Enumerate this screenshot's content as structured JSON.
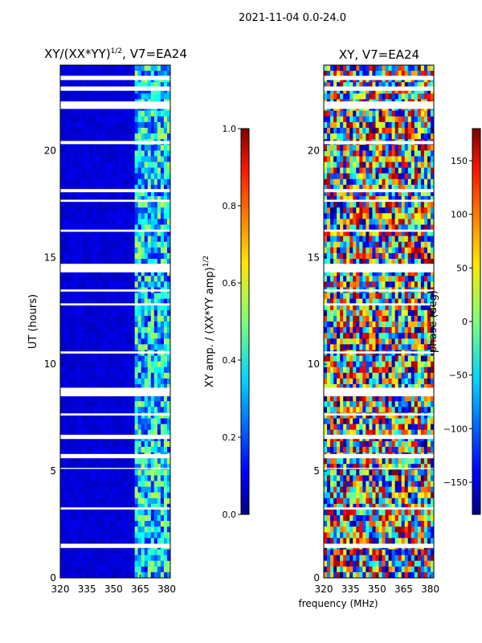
{
  "suptitle": "2021-11-04 0.0-24.0",
  "chart_data": [
    {
      "type": "heatmap",
      "title_prefix": "XY/(XX*YY)",
      "title_exp": "1/2",
      "title_suffix": ", V7=EA24",
      "xlabel": "",
      "ylabel": "UT (hours)",
      "xlim": [
        320,
        382
      ],
      "ylim": [
        0,
        24
      ],
      "xticks": [
        320,
        335,
        350,
        365,
        380
      ],
      "yticks": [
        0,
        5,
        10,
        15,
        20
      ],
      "colorbar": {
        "label": "XY amp. / (XX*YY amp)",
        "label_exp": "1/2",
        "range": [
          0.0,
          1.0
        ],
        "ticks": [
          "0.0",
          "0.2",
          "0.4",
          "0.6",
          "0.8",
          "1.0"
        ],
        "colormap": "jet"
      }
    },
    {
      "type": "heatmap",
      "title_prefix": "XY, V7=EA24",
      "title_exp": "",
      "title_suffix": "",
      "xlabel": "frequency (MHz)",
      "ylabel": "",
      "xlim": [
        320,
        382
      ],
      "ylim": [
        0,
        24
      ],
      "xticks": [
        320,
        335,
        350,
        365,
        380
      ],
      "yticks": [
        0,
        5,
        10,
        15,
        20
      ],
      "colorbar": {
        "label": "phase (deg)",
        "label_exp": "",
        "range": [
          -180,
          180
        ],
        "ticks": [
          "-150",
          "-100",
          "-50",
          "0",
          "50",
          "100",
          "150"
        ],
        "colormap": "jet"
      }
    }
  ]
}
